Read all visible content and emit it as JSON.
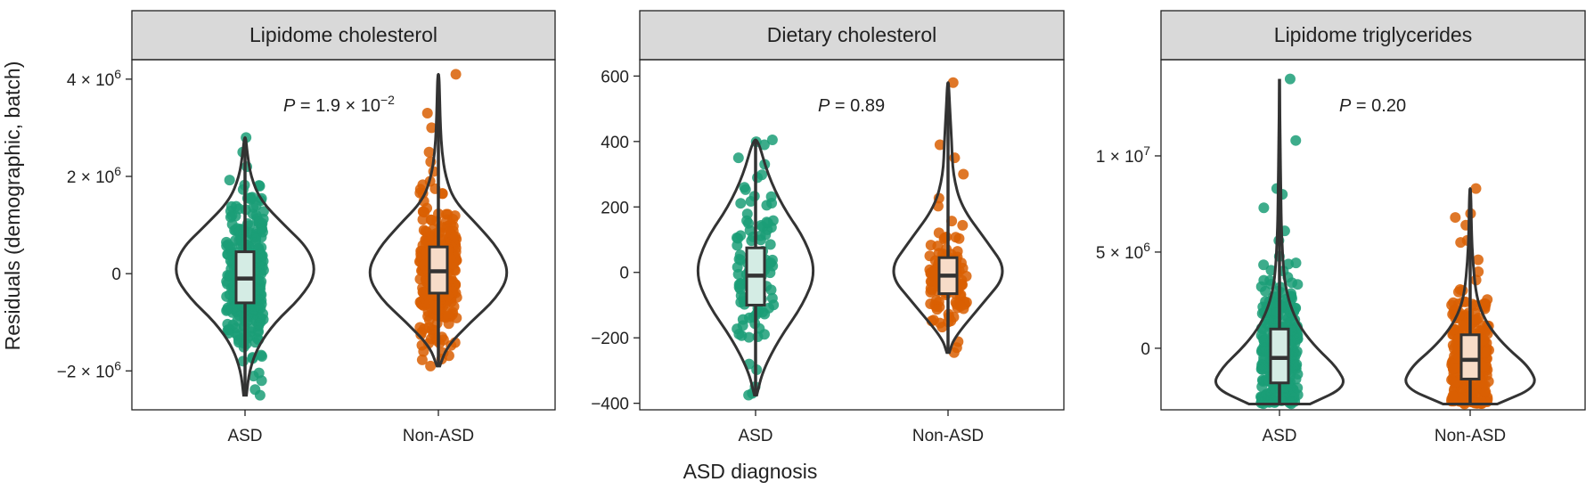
{
  "x_axis_title": "ASD diagnosis",
  "y_axis_title": "Residuals (demographic, batch)",
  "colors": {
    "ASD": "#1b9e77",
    "Non-ASD": "#d95f02",
    "ASD_box": "#d4ece4",
    "Non-ASD_box": "#f7dcc8",
    "strip": "#d9d9d9"
  },
  "chart_data": [
    {
      "type": "violin",
      "title": "Lipidome cholesterol",
      "p_value": {
        "prefix": "P",
        "text": " = 1.9 × 10",
        "exp": "−2"
      },
      "categories": [
        "ASD",
        "Non-ASD"
      ],
      "ylim": [
        -2800000,
        4400000
      ],
      "y_ticks": [
        {
          "value": -2000000,
          "base": "−2 × 10",
          "exp": "6"
        },
        {
          "value": 0,
          "base": "0",
          "exp": ""
        },
        {
          "value": 2000000,
          "base": "2 × 10",
          "exp": "6"
        },
        {
          "value": 4000000,
          "base": "4 × 10",
          "exp": "6"
        }
      ],
      "groups": [
        {
          "name": "ASD",
          "box": {
            "q1": -600000,
            "median": -100000,
            "q3": 450000,
            "whisker_low": -2500000,
            "whisker_high": 2800000
          },
          "violin": [
            [
              -2500000,
              0.02
            ],
            [
              -2000000,
              0.06
            ],
            [
              -1500000,
              0.18
            ],
            [
              -1000000,
              0.42
            ],
            [
              -500000,
              0.78
            ],
            [
              0,
              1.0
            ],
            [
              500000,
              0.9
            ],
            [
              1000000,
              0.55
            ],
            [
              1500000,
              0.22
            ],
            [
              2000000,
              0.08
            ],
            [
              2500000,
              0.03
            ],
            [
              2800000,
              0.01
            ]
          ],
          "outliers": [
            2800000,
            2500000,
            2200000,
            1800000,
            -1700000,
            -1800000,
            -2200000,
            -2500000
          ],
          "n_points": 320
        },
        {
          "name": "Non-ASD",
          "box": {
            "q1": -400000,
            "median": 50000,
            "q3": 550000,
            "whisker_low": -1900000,
            "whisker_high": 4100000
          },
          "violin": [
            [
              -1900000,
              0.02
            ],
            [
              -1500000,
              0.12
            ],
            [
              -1000000,
              0.45
            ],
            [
              -500000,
              0.82
            ],
            [
              0,
              1.0
            ],
            [
              500000,
              0.85
            ],
            [
              1000000,
              0.55
            ],
            [
              1500000,
              0.22
            ],
            [
              2000000,
              0.1
            ],
            [
              2500000,
              0.05
            ],
            [
              3000000,
              0.03
            ],
            [
              3500000,
              0.02
            ],
            [
              4100000,
              0.01
            ]
          ],
          "outliers": [
            4100000,
            3300000,
            3000000,
            2500000,
            2300000,
            2100000,
            1900000,
            -1600000,
            -1900000
          ],
          "n_points": 320
        }
      ]
    },
    {
      "type": "violin",
      "title": "Dietary cholesterol",
      "p_value": {
        "prefix": "P",
        "text": " = 0.89",
        "exp": ""
      },
      "categories": [
        "ASD",
        "Non-ASD"
      ],
      "ylim": [
        -420,
        650
      ],
      "y_ticks": [
        {
          "value": -400,
          "base": "−400",
          "exp": ""
        },
        {
          "value": -200,
          "base": "−200",
          "exp": ""
        },
        {
          "value": 0,
          "base": "0",
          "exp": ""
        },
        {
          "value": 200,
          "base": "200",
          "exp": ""
        },
        {
          "value": 400,
          "base": "400",
          "exp": ""
        },
        {
          "value": 600,
          "base": "600",
          "exp": ""
        }
      ],
      "groups": [
        {
          "name": "ASD",
          "box": {
            "q1": -100,
            "median": -10,
            "q3": 75,
            "whisker_low": -375,
            "whisker_high": 405
          },
          "violin": [
            [
              -375,
              0.02
            ],
            [
              -300,
              0.12
            ],
            [
              -200,
              0.4
            ],
            [
              -100,
              0.78
            ],
            [
              0,
              1.0
            ],
            [
              100,
              0.82
            ],
            [
              200,
              0.45
            ],
            [
              300,
              0.2
            ],
            [
              405,
              0.04
            ]
          ],
          "outliers": [
            405,
            390,
            350,
            330,
            -280,
            -375
          ],
          "n_points": 110
        },
        {
          "name": "Non-ASD",
          "box": {
            "q1": -65,
            "median": -10,
            "q3": 45,
            "whisker_low": -245,
            "whisker_high": 580
          },
          "violin": [
            [
              -245,
              0.02
            ],
            [
              -200,
              0.1
            ],
            [
              -100,
              0.55
            ],
            [
              0,
              1.0
            ],
            [
              100,
              0.62
            ],
            [
              200,
              0.22
            ],
            [
              300,
              0.08
            ],
            [
              400,
              0.06
            ],
            [
              500,
              0.03
            ],
            [
              580,
              0.01
            ]
          ],
          "outliers": [
            580,
            390,
            350,
            300,
            -230,
            -245
          ],
          "n_points": 110
        }
      ]
    },
    {
      "type": "violin",
      "title": "Lipidome triglycerides",
      "p_value": {
        "prefix": "P",
        "text": " = 0.20",
        "exp": ""
      },
      "categories": [
        "ASD",
        "Non-ASD"
      ],
      "ylim": [
        -3200000,
        15000000
      ],
      "y_ticks": [
        {
          "value": 0,
          "base": "0",
          "exp": ""
        },
        {
          "value": 5000000,
          "base": "5 × 10",
          "exp": "6"
        },
        {
          "value": 10000000,
          "base": "1 × 10",
          "exp": "7"
        }
      ],
      "groups": [
        {
          "name": "ASD",
          "box": {
            "q1": -1800000,
            "median": -500000,
            "q3": 1000000,
            "whisker_low": -2900000,
            "whisker_high": 14000000
          },
          "violin": [
            [
              -2900000,
              0.45
            ],
            [
              -2000000,
              1.0
            ],
            [
              -1000000,
              0.85
            ],
            [
              0,
              0.55
            ],
            [
              1000000,
              0.32
            ],
            [
              2000000,
              0.18
            ],
            [
              3000000,
              0.1
            ],
            [
              4000000,
              0.06
            ],
            [
              6000000,
              0.03
            ],
            [
              8000000,
              0.02
            ],
            [
              11000000,
              0.01
            ],
            [
              14000000,
              0.0
            ]
          ],
          "outliers": [
            14000000,
            10800000,
            8300000,
            8000000,
            7300000,
            6100000,
            5600000
          ],
          "n_points": 300
        },
        {
          "name": "Non-ASD",
          "box": {
            "q1": -1600000,
            "median": -600000,
            "q3": 700000,
            "whisker_low": -2900000,
            "whisker_high": 8300000
          },
          "violin": [
            [
              -2900000,
              0.4
            ],
            [
              -2000000,
              1.0
            ],
            [
              -1000000,
              0.88
            ],
            [
              0,
              0.55
            ],
            [
              1000000,
              0.3
            ],
            [
              2000000,
              0.15
            ],
            [
              3000000,
              0.08
            ],
            [
              4500000,
              0.04
            ],
            [
              6000000,
              0.02
            ],
            [
              8300000,
              0.01
            ]
          ],
          "outliers": [
            8300000,
            7000000,
            6800000,
            6400000,
            5500000,
            4600000
          ],
          "n_points": 300
        }
      ]
    }
  ]
}
